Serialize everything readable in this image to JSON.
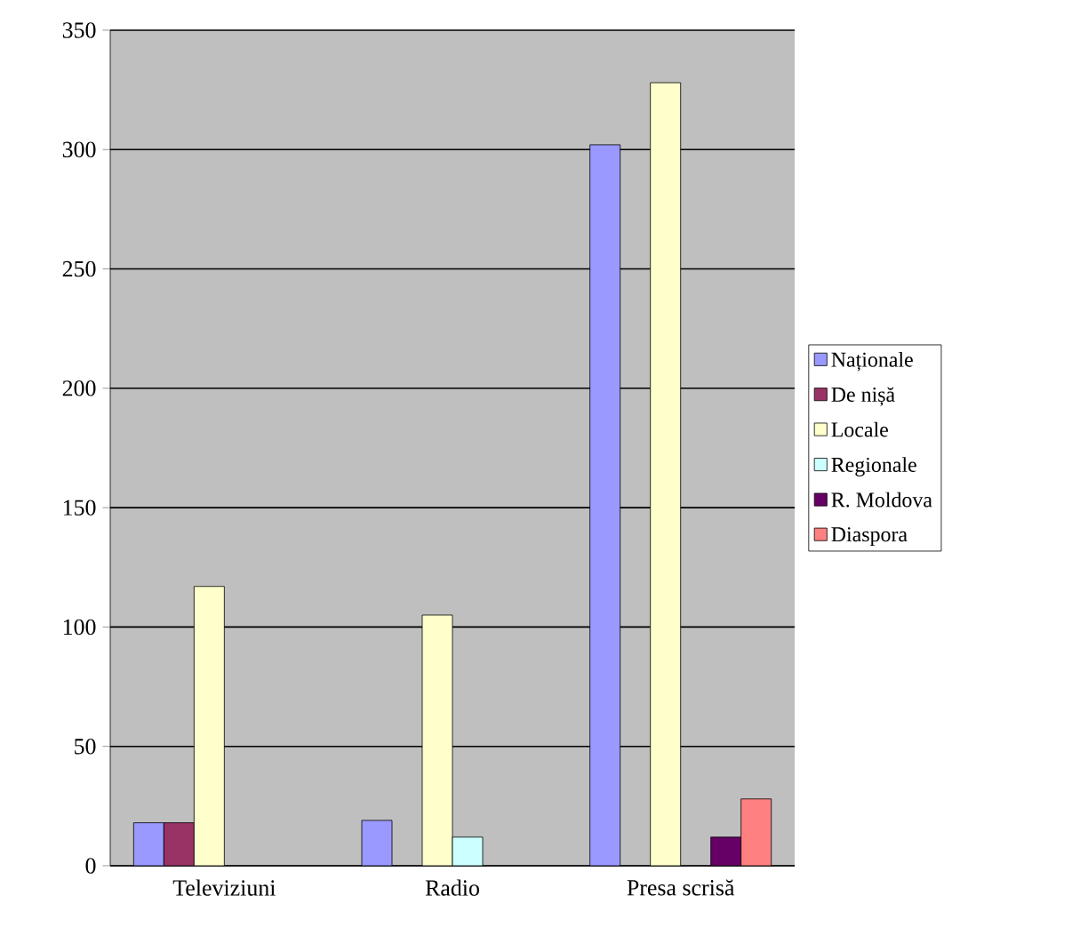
{
  "chart_data": {
    "type": "bar",
    "categories": [
      "Televiziuni",
      "Radio",
      "Presa scrisă"
    ],
    "series": [
      {
        "name": "Naționale",
        "color": "#9999ff",
        "values": [
          18,
          19,
          302
        ]
      },
      {
        "name": "De nișă",
        "color": "#993366",
        "values": [
          18,
          null,
          null
        ]
      },
      {
        "name": "Locale",
        "color": "#ffffcc",
        "values": [
          117,
          105,
          328
        ]
      },
      {
        "name": "Regionale",
        "color": "#ccffff",
        "values": [
          null,
          12,
          null
        ]
      },
      {
        "name": "R. Moldova",
        "color": "#660066",
        "values": [
          null,
          null,
          12
        ]
      },
      {
        "name": "Diaspora",
        "color": "#ff8080",
        "values": [
          null,
          null,
          28
        ]
      }
    ],
    "ylim": [
      0,
      350
    ],
    "yticks": [
      0,
      50,
      100,
      150,
      200,
      250,
      300,
      350
    ],
    "grid": "y",
    "legend": "right"
  }
}
